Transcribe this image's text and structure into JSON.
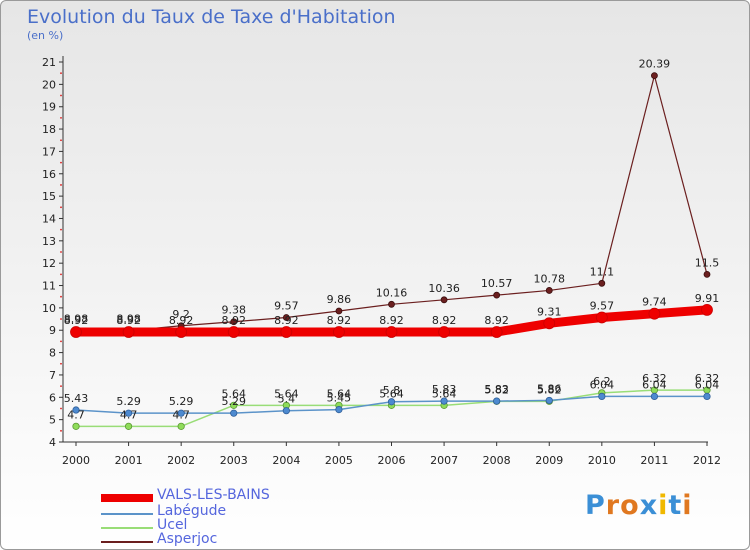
{
  "colors": {
    "vals": "#ee0000",
    "labegude": "#5b93c9",
    "ucel": "#99dd77",
    "asperjoc": "#6b1f1f",
    "title": "#4a6fc9",
    "legend": "#5566dd"
  },
  "chart_data": {
    "type": "line",
    "title": "Evolution du Taux de Taxe d'Habitation",
    "ylabel": "(en %)",
    "xlabel": "",
    "x": [
      "2000",
      "2001",
      "2002",
      "2003",
      "2004",
      "2005",
      "2006",
      "2007",
      "2008",
      "2009",
      "2010",
      "2011",
      "2012"
    ],
    "ylim": [
      4,
      21
    ],
    "yticks": [
      "4",
      "5",
      "6",
      "7",
      "8",
      "9",
      "10",
      "11",
      "12",
      "13",
      "14",
      "15",
      "16",
      "17",
      "18",
      "19",
      "20",
      "21"
    ],
    "grid": false,
    "legend_position": "bottom-left",
    "series": [
      {
        "key": "vals",
        "name": "VALS-LES-BAINS",
        "values": [
          8.92,
          8.92,
          8.92,
          8.92,
          8.92,
          8.92,
          8.92,
          8.92,
          8.92,
          9.31,
          9.57,
          9.74,
          9.91
        ],
        "labels": [
          "8.92",
          "8.92",
          "8.92",
          "8.92",
          "8.92",
          "8.92",
          "8.92",
          "8.92",
          "8.92",
          "9.31",
          "9.57",
          "9.74",
          "9.91"
        ]
      },
      {
        "key": "labegude",
        "name": "Labégude",
        "values": [
          5.43,
          5.29,
          5.29,
          5.29,
          5.4,
          5.45,
          5.8,
          5.83,
          5.83,
          5.86,
          6.04,
          6.04,
          6.04
        ],
        "labels": [
          "5.43",
          "5.29",
          "5.29",
          "5.29",
          "5.4",
          "5.45",
          "5.8",
          "5.83",
          "5.83",
          "5.86",
          "6.04",
          "6.04",
          "6.04"
        ]
      },
      {
        "key": "ucel",
        "name": "Ucel",
        "values": [
          4.7,
          4.7,
          4.7,
          5.64,
          5.64,
          5.64,
          5.64,
          5.64,
          5.82,
          5.82,
          6.2,
          6.32,
          6.32
        ],
        "labels": [
          "4.7",
          "4.7",
          "4.7",
          "5.64",
          "5.64",
          "5.64",
          "5.64",
          "5.64",
          "5.82",
          "5.82",
          "6.2",
          "6.32",
          "6.32"
        ]
      },
      {
        "key": "asperjoc",
        "name": "Asperjoc",
        "values": [
          8.98,
          8.98,
          9.2,
          9.38,
          9.57,
          9.86,
          10.16,
          10.36,
          10.57,
          10.78,
          11.1,
          20.39,
          11.5
        ],
        "labels": [
          "8.98",
          "8.98",
          "9.2",
          "9.38",
          "9.57",
          "9.86",
          "10.16",
          "10.36",
          "10.57",
          "10.78",
          "11.1",
          "20.39",
          "11.5"
        ]
      }
    ]
  },
  "branding": {
    "text": "Proxiti"
  }
}
